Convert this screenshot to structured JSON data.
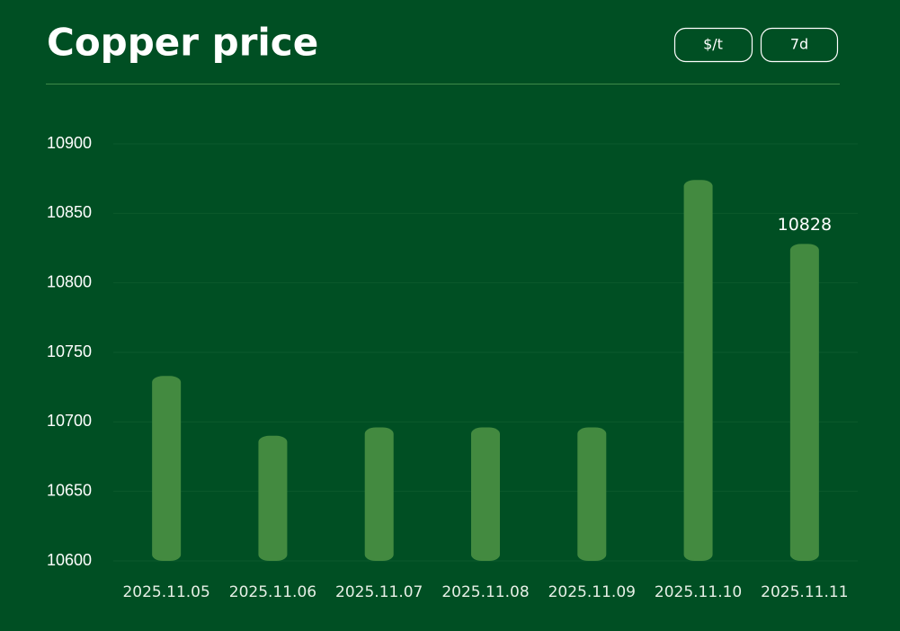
{
  "chart_data": {
    "type": "bar",
    "title": "Copper price",
    "buttons": [
      "$/t",
      "7d"
    ],
    "categories": [
      "2025.11.05",
      "2025.11.06",
      "2025.11.07",
      "2025.11.08",
      "2025.11.09",
      "2025.11.10",
      "2025.11.11"
    ],
    "values": [
      10733,
      10690,
      10696,
      10696,
      10696,
      10874,
      10828
    ],
    "value_labels": [
      null,
      null,
      null,
      null,
      null,
      null,
      "10828"
    ],
    "color": "#438a40",
    "ylim": [
      10600,
      10900
    ],
    "yticks": [
      10600,
      10650,
      10700,
      10750,
      10800,
      10850,
      10900
    ],
    "grid": true
  }
}
